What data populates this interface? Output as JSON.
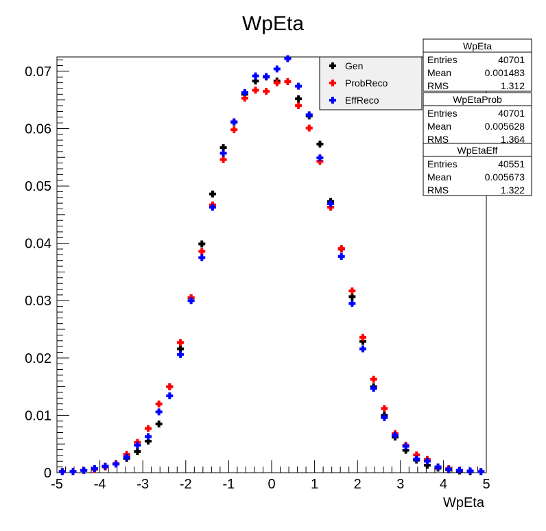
{
  "chart_data": {
    "type": "scatter",
    "title": "WpEta",
    "xlabel": "WpEta",
    "ylabel": "",
    "xlim": [
      -5,
      5
    ],
    "ylim": [
      0,
      0.0725
    ],
    "x_ticks": [
      -5,
      -4,
      -3,
      -2,
      -1,
      0,
      1,
      2,
      3,
      4,
      5
    ],
    "x_tick_labels": [
      "-5",
      "-4",
      "-3",
      "-2",
      "-1",
      "0",
      "1",
      "2",
      "3",
      "4",
      "5"
    ],
    "y_ticks": [
      0,
      0.01,
      0.02,
      0.03,
      0.04,
      0.05,
      0.06,
      0.07
    ],
    "y_tick_labels": [
      "0",
      "0.01",
      "0.02",
      "0.03",
      "0.04",
      "0.05",
      "0.06",
      "0.07"
    ],
    "grid": false,
    "legend_position": "top-right",
    "x": [
      -4.875,
      -4.625,
      -4.375,
      -4.125,
      -3.875,
      -3.625,
      -3.375,
      -3.125,
      -2.875,
      -2.625,
      -2.375,
      -2.125,
      -1.875,
      -1.625,
      -1.375,
      -1.125,
      -0.875,
      -0.625,
      -0.375,
      -0.125,
      0.125,
      0.375,
      0.625,
      0.875,
      1.125,
      1.375,
      1.625,
      1.875,
      2.125,
      2.375,
      2.625,
      2.875,
      3.125,
      3.375,
      3.625,
      3.875,
      4.125,
      4.375,
      4.625,
      4.875
    ],
    "series": [
      {
        "name": "Gen",
        "color": "#000000",
        "values": [
          0.0002,
          0.0002,
          0.0004,
          0.0007,
          0.0011,
          0.0015,
          0.0025,
          0.0037,
          0.0055,
          0.0085,
          0.015,
          0.0216,
          0.0305,
          0.0399,
          0.0486,
          0.0567,
          0.0611,
          0.066,
          0.0683,
          0.069,
          0.0683,
          0.0722,
          0.0652,
          0.0622,
          0.0573,
          0.0473,
          0.039,
          0.0307,
          0.0229,
          0.015,
          0.01,
          0.0062,
          0.0039,
          0.0022,
          0.0013,
          0.0008,
          0.0005,
          0.0003,
          0.0002,
          0.0002
        ]
      },
      {
        "name": "ProbReco",
        "color": "#ff0000",
        "values": [
          0.0002,
          0.0002,
          0.0004,
          0.0006,
          0.001,
          0.0016,
          0.0032,
          0.0053,
          0.0077,
          0.012,
          0.015,
          0.0227,
          0.0305,
          0.0386,
          0.0467,
          0.0546,
          0.0598,
          0.0653,
          0.0667,
          0.0665,
          0.068,
          0.0682,
          0.064,
          0.0601,
          0.0543,
          0.0463,
          0.0391,
          0.0317,
          0.0236,
          0.0163,
          0.0112,
          0.0068,
          0.0048,
          0.0031,
          0.0023,
          0.001,
          0.0007,
          0.0004,
          0.0003,
          0.0002
        ]
      },
      {
        "name": "EffReco",
        "color": "#0000ff",
        "values": [
          0.0002,
          0.0002,
          0.0004,
          0.0007,
          0.0011,
          0.0015,
          0.0027,
          0.0048,
          0.0063,
          0.0106,
          0.0134,
          0.0206,
          0.03,
          0.0375,
          0.0463,
          0.0557,
          0.0612,
          0.0663,
          0.0692,
          0.0691,
          0.0704,
          0.0722,
          0.0674,
          0.0624,
          0.0549,
          0.0469,
          0.0377,
          0.0295,
          0.0216,
          0.0147,
          0.0096,
          0.0065,
          0.0046,
          0.0024,
          0.002,
          0.001,
          0.0006,
          0.0004,
          0.0003,
          0.0002
        ]
      }
    ],
    "stats_boxes": [
      {
        "name": "WpEta",
        "rows": [
          {
            "label": "Entries",
            "value": "40701"
          },
          {
            "label": "Mean",
            "value": "0.001483"
          },
          {
            "label": "RMS",
            "value": "1.312"
          }
        ]
      },
      {
        "name": "WpEtaProb",
        "rows": [
          {
            "label": "Entries",
            "value": "40701"
          },
          {
            "label": "Mean",
            "value": "0.005628"
          },
          {
            "label": "RMS",
            "value": "1.364"
          }
        ]
      },
      {
        "name": "WpEtaEff",
        "rows": [
          {
            "label": "Entries",
            "value": "40551"
          },
          {
            "label": "Mean",
            "value": "0.005673"
          },
          {
            "label": "RMS",
            "value": "1.322"
          }
        ]
      }
    ]
  }
}
